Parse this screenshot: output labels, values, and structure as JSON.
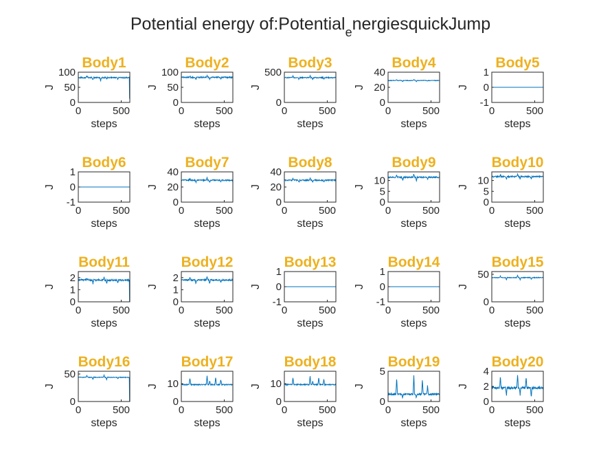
{
  "figure": {
    "title_main": "Potential energy of:Potential",
    "title_sub": "e",
    "title_rest": "nergiesquickJump",
    "title_color": "#EDB120",
    "line_color": "#0072BD",
    "axis_color": "#262626",
    "grid": "off",
    "layout": "4 rows x 5 columns"
  },
  "chart_data": [
    {
      "type": "line",
      "title": "Body1",
      "xlabel": "steps",
      "ylabel": "J",
      "xlim": [
        0,
        600
      ],
      "ylim": [
        0,
        100
      ],
      "xticks": [
        0,
        500
      ],
      "yticks": [
        0,
        50,
        100
      ],
      "baseline": 82,
      "noise": 2,
      "spikes": [
        [
          100,
          6
        ],
        [
          170,
          -8
        ],
        [
          260,
          -10
        ],
        [
          330,
          -6
        ],
        [
          460,
          -5
        ]
      ],
      "drop_end": -70
    },
    {
      "type": "line",
      "title": "Body2",
      "xlabel": "steps",
      "ylabel": "J",
      "xlim": [
        0,
        600
      ],
      "ylim": [
        0,
        100
      ],
      "xticks": [
        0,
        500
      ],
      "yticks": [
        0,
        50,
        100
      ],
      "baseline": 83,
      "noise": 2,
      "spikes": [
        [
          100,
          5
        ],
        [
          170,
          -6
        ],
        [
          300,
          6
        ],
        [
          330,
          -6
        ],
        [
          460,
          -5
        ]
      ],
      "drop_end": 0
    },
    {
      "type": "line",
      "title": "Body3",
      "xlabel": "steps",
      "ylabel": "J",
      "xlim": [
        0,
        600
      ],
      "ylim": [
        0,
        500
      ],
      "xticks": [
        0,
        500
      ],
      "yticks": [
        0,
        500
      ],
      "baseline": 410,
      "noise": 8,
      "spikes": [
        [
          100,
          25
        ],
        [
          170,
          -30
        ],
        [
          300,
          30
        ],
        [
          330,
          -30
        ],
        [
          460,
          -25
        ]
      ],
      "drop_end": 0
    },
    {
      "type": "line",
      "title": "Body4",
      "xlabel": "steps",
      "ylabel": "J",
      "xlim": [
        0,
        600
      ],
      "ylim": [
        0,
        40
      ],
      "xticks": [
        0,
        500
      ],
      "yticks": [
        0,
        20,
        40
      ],
      "baseline": 29,
      "noise": 0.4,
      "spikes": [
        [
          100,
          1
        ],
        [
          170,
          -1.5
        ],
        [
          300,
          1.5
        ],
        [
          330,
          -1.5
        ],
        [
          460,
          -1
        ]
      ],
      "drop_end": 0
    },
    {
      "type": "line",
      "title": "Body5",
      "xlabel": "steps",
      "ylabel": "J",
      "xlim": [
        0,
        600
      ],
      "ylim": [
        -1,
        1
      ],
      "xticks": [
        0,
        500
      ],
      "yticks": [
        -1,
        0,
        1
      ],
      "baseline": 0,
      "noise": 0,
      "spikes": [],
      "drop_end": 0
    },
    {
      "type": "line",
      "title": "Body6",
      "xlabel": "steps",
      "ylabel": "J",
      "xlim": [
        0,
        600
      ],
      "ylim": [
        -1,
        1
      ],
      "xticks": [
        0,
        500
      ],
      "yticks": [
        -1,
        0,
        1
      ],
      "baseline": 0,
      "noise": 0,
      "spikes": [],
      "drop_end": 0
    },
    {
      "type": "line",
      "title": "Body7",
      "xlabel": "steps",
      "ylabel": "J",
      "xlim": [
        0,
        600
      ],
      "ylim": [
        0,
        40
      ],
      "xticks": [
        0,
        500
      ],
      "yticks": [
        0,
        20,
        40
      ],
      "baseline": 29,
      "noise": 0.8,
      "spikes": [
        [
          100,
          2
        ],
        [
          170,
          -3
        ],
        [
          300,
          3
        ],
        [
          330,
          -3
        ],
        [
          460,
          -2
        ]
      ],
      "drop_end": 0
    },
    {
      "type": "line",
      "title": "Body8",
      "xlabel": "steps",
      "ylabel": "J",
      "xlim": [
        0,
        600
      ],
      "ylim": [
        0,
        40
      ],
      "xticks": [
        0,
        500
      ],
      "yticks": [
        0,
        20,
        40
      ],
      "baseline": 29,
      "noise": 0.8,
      "spikes": [
        [
          100,
          2
        ],
        [
          170,
          -3
        ],
        [
          300,
          3
        ],
        [
          330,
          -3
        ],
        [
          460,
          -2
        ]
      ],
      "drop_end": 0
    },
    {
      "type": "line",
      "title": "Body9",
      "xlabel": "steps",
      "ylabel": "J",
      "xlim": [
        0,
        600
      ],
      "ylim": [
        0,
        14
      ],
      "xticks": [
        0,
        500
      ],
      "yticks": [
        0,
        5,
        10
      ],
      "baseline": 11.5,
      "noise": 0.3,
      "spikes": [
        [
          100,
          1
        ],
        [
          170,
          -1.5
        ],
        [
          300,
          1.5
        ],
        [
          330,
          -1.5
        ],
        [
          460,
          -1
        ]
      ],
      "drop_end": 0
    },
    {
      "type": "line",
      "title": "Body10",
      "xlabel": "steps",
      "ylabel": "J",
      "xlim": [
        0,
        600
      ],
      "ylim": [
        0,
        14
      ],
      "xticks": [
        0,
        500
      ],
      "yticks": [
        0,
        5,
        10
      ],
      "baseline": 11.8,
      "noise": 0.3,
      "spikes": [
        [
          100,
          1
        ],
        [
          170,
          -1.2
        ],
        [
          300,
          1.2
        ],
        [
          330,
          -1.2
        ],
        [
          460,
          -1
        ]
      ],
      "drop_end": 0
    },
    {
      "type": "line",
      "title": "Body11",
      "xlabel": "steps",
      "ylabel": "J",
      "xlim": [
        0,
        600
      ],
      "ylim": [
        0,
        2.5
      ],
      "xticks": [
        0,
        500
      ],
      "yticks": [
        0,
        1,
        2
      ],
      "baseline": 1.8,
      "noise": 0.08,
      "spikes": [
        [
          100,
          0.2
        ],
        [
          170,
          -0.3
        ],
        [
          300,
          0.25
        ],
        [
          330,
          -0.3
        ],
        [
          460,
          -0.2
        ]
      ],
      "drop_end": -1.8
    },
    {
      "type": "line",
      "title": "Body12",
      "xlabel": "steps",
      "ylabel": "J",
      "xlim": [
        0,
        600
      ],
      "ylim": [
        0,
        2.5
      ],
      "xticks": [
        0,
        500
      ],
      "yticks": [
        0,
        1,
        2
      ],
      "baseline": 1.8,
      "noise": 0.06,
      "spikes": [
        [
          100,
          0.2
        ],
        [
          170,
          -0.3
        ],
        [
          300,
          0.25
        ],
        [
          330,
          -0.3
        ],
        [
          460,
          -0.2
        ]
      ],
      "drop_end": 0
    },
    {
      "type": "line",
      "title": "Body13",
      "xlabel": "steps",
      "ylabel": "J",
      "xlim": [
        0,
        600
      ],
      "ylim": [
        -1,
        1
      ],
      "xticks": [
        0,
        500
      ],
      "yticks": [
        -1,
        0,
        1
      ],
      "baseline": 0,
      "noise": 0,
      "spikes": [],
      "drop_end": 0
    },
    {
      "type": "line",
      "title": "Body14",
      "xlabel": "steps",
      "ylabel": "J",
      "xlim": [
        0,
        600
      ],
      "ylim": [
        -1,
        1
      ],
      "xticks": [
        0,
        500
      ],
      "yticks": [
        -1,
        0,
        1
      ],
      "baseline": 0,
      "noise": 0,
      "spikes": [],
      "drop_end": 0
    },
    {
      "type": "line",
      "title": "Body15",
      "xlabel": "steps",
      "ylabel": "J",
      "xlim": [
        0,
        600
      ],
      "ylim": [
        0,
        55
      ],
      "xticks": [
        0,
        500
      ],
      "yticks": [
        0,
        50
      ],
      "baseline": 44,
      "noise": 0.6,
      "spikes": [
        [
          100,
          3
        ],
        [
          170,
          -4
        ],
        [
          300,
          4
        ],
        [
          330,
          -4
        ],
        [
          460,
          -3
        ]
      ],
      "drop_end": 0
    },
    {
      "type": "line",
      "title": "Body16",
      "xlabel": "steps",
      "ylabel": "J",
      "xlim": [
        0,
        600
      ],
      "ylim": [
        0,
        55
      ],
      "xticks": [
        0,
        500
      ],
      "yticks": [
        0,
        50
      ],
      "baseline": 44,
      "noise": 0.6,
      "spikes": [
        [
          100,
          3
        ],
        [
          170,
          -4
        ],
        [
          300,
          4
        ],
        [
          330,
          -4
        ],
        [
          460,
          -3
        ]
      ],
      "drop_end": -44
    },
    {
      "type": "line",
      "title": "Body17",
      "xlabel": "steps",
      "ylabel": "J",
      "xlim": [
        0,
        600
      ],
      "ylim": [
        0,
        17
      ],
      "xticks": [
        0,
        500
      ],
      "yticks": [
        0,
        10
      ],
      "baseline": 9.5,
      "noise": 0.3,
      "spikes": [
        [
          100,
          4
        ],
        [
          300,
          5
        ],
        [
          330,
          2
        ],
        [
          400,
          4
        ],
        [
          460,
          3
        ]
      ],
      "drop_end": 0
    },
    {
      "type": "line",
      "title": "Body18",
      "xlabel": "steps",
      "ylabel": "J",
      "xlim": [
        0,
        600
      ],
      "ylim": [
        0,
        17
      ],
      "xticks": [
        0,
        500
      ],
      "yticks": [
        0,
        10
      ],
      "baseline": 9.5,
      "noise": 0.3,
      "spikes": [
        [
          100,
          4
        ],
        [
          300,
          5
        ],
        [
          330,
          2
        ],
        [
          400,
          4
        ],
        [
          460,
          3
        ]
      ],
      "drop_end": 0
    },
    {
      "type": "line",
      "title": "Body19",
      "xlabel": "steps",
      "ylabel": "J",
      "xlim": [
        0,
        600
      ],
      "ylim": [
        0,
        5
      ],
      "xticks": [
        0,
        500
      ],
      "yticks": [
        0,
        5
      ],
      "baseline": 1.2,
      "noise": 0.15,
      "spikes": [
        [
          100,
          2.8
        ],
        [
          170,
          -0.6
        ],
        [
          300,
          3.0
        ],
        [
          330,
          -0.6
        ],
        [
          400,
          2.5
        ],
        [
          460,
          1.5
        ]
      ],
      "drop_end": 0
    },
    {
      "type": "line",
      "title": "Body20",
      "xlabel": "steps",
      "ylabel": "J",
      "xlim": [
        0,
        600
      ],
      "ylim": [
        0,
        4
      ],
      "xticks": [
        0,
        500
      ],
      "yticks": [
        0,
        2,
        4
      ],
      "baseline": 1.8,
      "noise": 0.15,
      "spikes": [
        [
          100,
          1.6
        ],
        [
          170,
          -1.0
        ],
        [
          300,
          1.8
        ],
        [
          330,
          -1.0
        ],
        [
          400,
          1.4
        ],
        [
          460,
          -1.2
        ]
      ],
      "drop_end": 0
    }
  ]
}
